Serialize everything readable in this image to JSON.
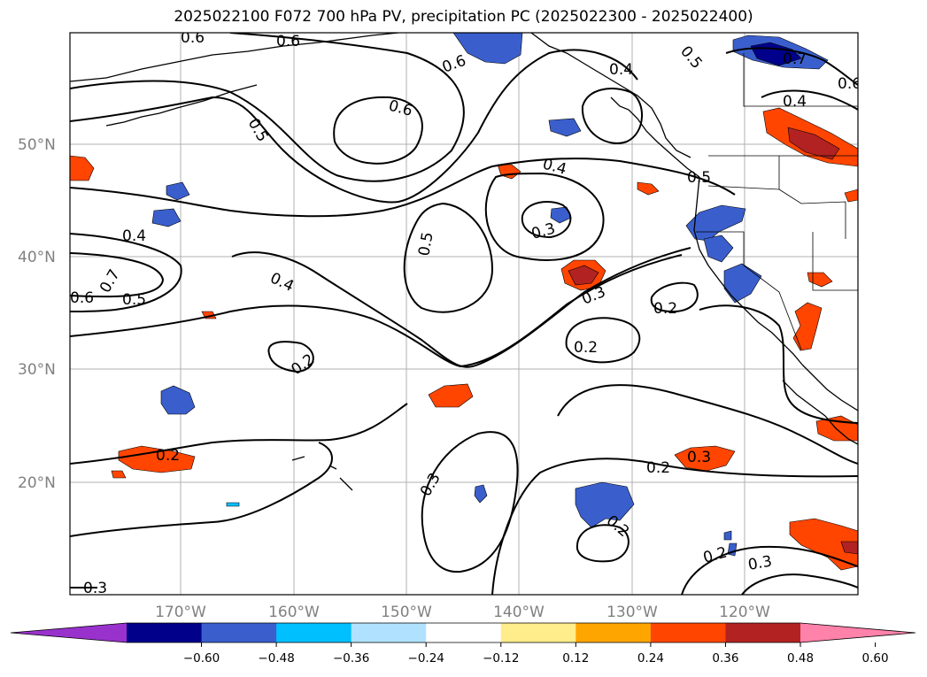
{
  "title": "2025022100 F072 700 hPa PV, precipitation PC (2025022300 - 2025022400)",
  "lon_labels": [
    "170°W",
    "160°W",
    "150°W",
    "140°W",
    "130°W",
    "120°W"
  ],
  "lat_labels": [
    "50°N",
    "40°N",
    "30°N",
    "20°N"
  ],
  "contour_labels": [
    "0.6",
    "0.6",
    "0.6",
    "0.4",
    "0.5",
    "0.7",
    "0.6",
    "0.4",
    "0.5",
    "0.6",
    "0.4",
    "0.5",
    "0.4",
    "0.3",
    "0.5",
    "0.4",
    "0.7",
    "0.5",
    "0.6",
    "0.3",
    "0.2",
    "0.2",
    "0.2",
    "0.2",
    "0.3",
    "0.2",
    "0.3",
    "0.2",
    "0.2",
    "0.3",
    "0.3"
  ],
  "colorbar": {
    "colors": [
      "#9932cc",
      "#00008b",
      "#3a5fcd",
      "#00bfff",
      "#b0e2ff",
      "#ffffff",
      "#ffec8b",
      "#ffa500",
      "#ff4500",
      "#b22222",
      "#ff82ab"
    ],
    "ticks": [
      "−0.60",
      "−0.48",
      "−0.36",
      "−0.24",
      "−0.12",
      "0.12",
      "0.24",
      "0.36",
      "0.48",
      "0.60"
    ]
  },
  "precip_colors": {
    "neg_dark": "#00008b",
    "neg": "#3a5fcd",
    "neg_light": "#00bfff",
    "pos_light": "#ffec8b",
    "pos": "#ff4500",
    "pos_dark": "#b22222"
  }
}
